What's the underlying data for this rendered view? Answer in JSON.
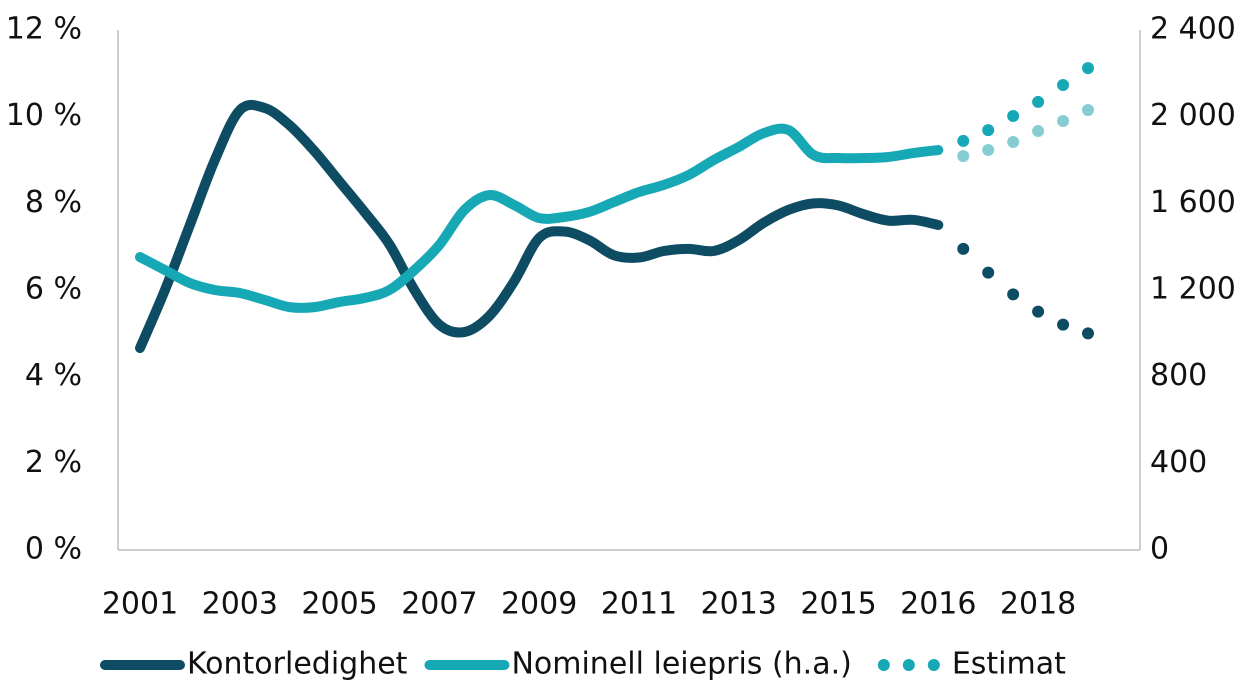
{
  "chart_data": {
    "type": "line",
    "categories": [
      "2001",
      null,
      null,
      null,
      "2003",
      null,
      null,
      null,
      "2005",
      null,
      null,
      null,
      "2007",
      null,
      null,
      null,
      "2009",
      null,
      null,
      null,
      "2011",
      null,
      null,
      null,
      "2013",
      null,
      null,
      null,
      "2015",
      null,
      null,
      null,
      "2016",
      null,
      null,
      null,
      "2018",
      null,
      null
    ],
    "series": [
      {
        "name": "Kontorledighet",
        "color": "#0e4c63",
        "style": "solid",
        "axis": "y",
        "values": [
          4.66,
          6.0,
          7.5,
          9.0,
          10.15,
          10.2,
          9.8,
          9.2,
          8.5,
          7.8,
          7.05,
          6.0,
          5.2,
          5.03,
          5.4,
          6.2,
          7.2,
          7.35,
          7.15,
          6.8,
          6.75,
          6.9,
          6.95,
          6.9,
          7.15,
          7.55,
          7.85,
          8.0,
          7.95,
          7.75,
          7.6,
          7.62,
          7.5,
          null,
          null,
          null,
          null,
          null,
          null
        ]
      },
      {
        "name": "Nominell leiepris (h.a.)",
        "color": "#17a8b5",
        "style": "solid",
        "axis": "y2",
        "values": [
          1352,
          1292,
          1232,
          1200,
          1186,
          1154,
          1121,
          1121,
          1145,
          1163,
          1200,
          1292,
          1408,
          1569,
          1638,
          1592,
          1532,
          1537,
          1560,
          1606,
          1652,
          1685,
          1731,
          1800,
          1860,
          1924,
          1938,
          1823,
          1809,
          1809,
          1814,
          1832,
          1846,
          null,
          null,
          null,
          null,
          null,
          null
        ]
      },
      {
        "name": "Estimat",
        "color": "#17a8b5",
        "style": "dotted",
        "axis": "y2",
        "values": [
          null,
          null,
          null,
          null,
          null,
          null,
          null,
          null,
          null,
          null,
          null,
          null,
          null,
          null,
          null,
          null,
          null,
          null,
          null,
          null,
          null,
          null,
          null,
          null,
          null,
          null,
          null,
          null,
          null,
          null,
          null,
          null,
          null,
          1888,
          1938,
          2003,
          2068,
          2146,
          2224
        ]
      },
      {
        "color": "#0e4c63",
        "style": "dotted",
        "axis": "y",
        "values": [
          null,
          null,
          null,
          null,
          null,
          null,
          null,
          null,
          null,
          null,
          null,
          null,
          null,
          null,
          null,
          null,
          null,
          null,
          null,
          null,
          null,
          null,
          null,
          null,
          null,
          null,
          null,
          null,
          null,
          null,
          null,
          null,
          null,
          6.95,
          6.4,
          5.9,
          5.5,
          5.2,
          5.0
        ]
      },
      {
        "color": "#86cdd3",
        "style": "dotted",
        "axis": "y2",
        "values": [
          null,
          null,
          null,
          null,
          null,
          null,
          null,
          null,
          null,
          null,
          null,
          null,
          null,
          null,
          null,
          null,
          null,
          null,
          null,
          null,
          null,
          null,
          null,
          null,
          null,
          null,
          null,
          null,
          null,
          null,
          null,
          null,
          null,
          1818,
          1846,
          1883,
          1934,
          1980,
          2031
        ]
      }
    ],
    "ylim": [
      0,
      12
    ],
    "yticks": [
      {
        "value": 0,
        "label": "0 %"
      },
      {
        "value": 2,
        "label": "2 %"
      },
      {
        "value": 4,
        "label": "4 %"
      },
      {
        "value": 6,
        "label": "6 %"
      },
      {
        "value": 8,
        "label": "8 %"
      },
      {
        "value": 10,
        "label": "10 %"
      },
      {
        "value": 12,
        "label": "12 %"
      }
    ],
    "y2lim": [
      0,
      2400
    ],
    "y2ticks": [
      0,
      400,
      800,
      {
        "value": 1200,
        "label": "1 200"
      },
      {
        "value": 1600,
        "label": "1 600"
      },
      {
        "value": 2000,
        "label": "2 000"
      },
      {
        "value": 2400,
        "label": "2 400"
      }
    ],
    "grid": false,
    "legend": "bottom"
  }
}
